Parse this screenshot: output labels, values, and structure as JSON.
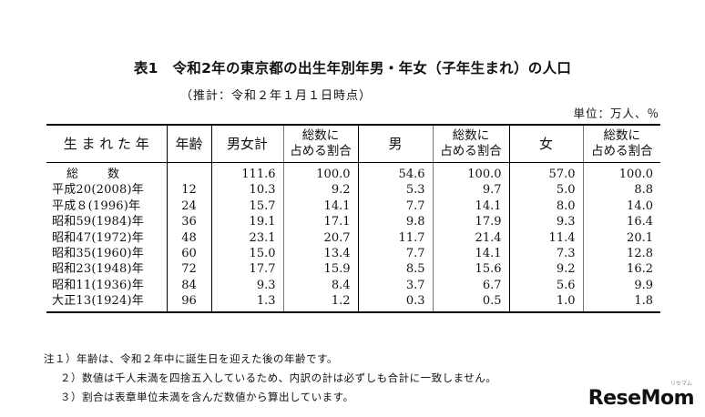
{
  "title": "表1　令和2年の東京都の出生年別年男・年女（子年生まれ）の人口",
  "subtitle": "（推計：令和２年１月１日時点）",
  "unit": "単位：万人、％",
  "headers": {
    "born": "生 ま れ た 年",
    "age": "年齢",
    "total": "男女計",
    "total_ratio": [
      "総数に",
      "占める割合"
    ],
    "male": "男",
    "male_ratio": [
      "総数に",
      "占める割合"
    ],
    "female": "女",
    "female_ratio": [
      "総数に",
      "占める割合"
    ]
  },
  "rows": [
    {
      "born": "総　　数",
      "age": "",
      "total": "111.6",
      "total_ratio": "100.0",
      "male": "54.6",
      "male_ratio": "100.0",
      "female": "57.0",
      "female_ratio": "100.0"
    },
    {
      "born": "平成20(2008)年",
      "age": "12",
      "total": "10.3",
      "total_ratio": "9.2",
      "male": "5.3",
      "male_ratio": "9.7",
      "female": "5.0",
      "female_ratio": "8.8"
    },
    {
      "born": "平成８(1996)年",
      "age": "24",
      "total": "15.7",
      "total_ratio": "14.1",
      "male": "7.7",
      "male_ratio": "14.1",
      "female": "8.0",
      "female_ratio": "14.0"
    },
    {
      "born": "昭和59(1984)年",
      "age": "36",
      "total": "19.1",
      "total_ratio": "17.1",
      "male": "9.8",
      "male_ratio": "17.9",
      "female": "9.3",
      "female_ratio": "16.4"
    },
    {
      "born": "昭和47(1972)年",
      "age": "48",
      "total": "23.1",
      "total_ratio": "20.7",
      "male": "11.7",
      "male_ratio": "21.4",
      "female": "11.4",
      "female_ratio": "20.1"
    },
    {
      "born": "昭和35(1960)年",
      "age": "60",
      "total": "15.0",
      "total_ratio": "13.4",
      "male": "7.7",
      "male_ratio": "14.1",
      "female": "7.3",
      "female_ratio": "12.8"
    },
    {
      "born": "昭和23(1948)年",
      "age": "72",
      "total": "17.7",
      "total_ratio": "15.9",
      "male": "8.5",
      "male_ratio": "15.6",
      "female": "9.2",
      "female_ratio": "16.2"
    },
    {
      "born": "昭和11(1936)年",
      "age": "84",
      "total": "9.3",
      "total_ratio": "8.4",
      "male": "3.7",
      "male_ratio": "6.7",
      "female": "5.6",
      "female_ratio": "9.9"
    },
    {
      "born": "大正13(1924)年",
      "age": "96",
      "total": "1.3",
      "total_ratio": "1.2",
      "male": "0.3",
      "male_ratio": "0.5",
      "female": "1.0",
      "female_ratio": "1.8"
    }
  ],
  "notes": [
    "注１）年齢は、令和２年中に誕生日を迎えた後の年齢です。",
    "２）数値は千人未満を四捨五入しているため、内訳の計は必ずしも合計に一致しません。",
    "３）割合は表章単位未満を含んだ数値から算出しています。"
  ],
  "logo": {
    "text": "ReseMom",
    "sub": "リセマム"
  }
}
